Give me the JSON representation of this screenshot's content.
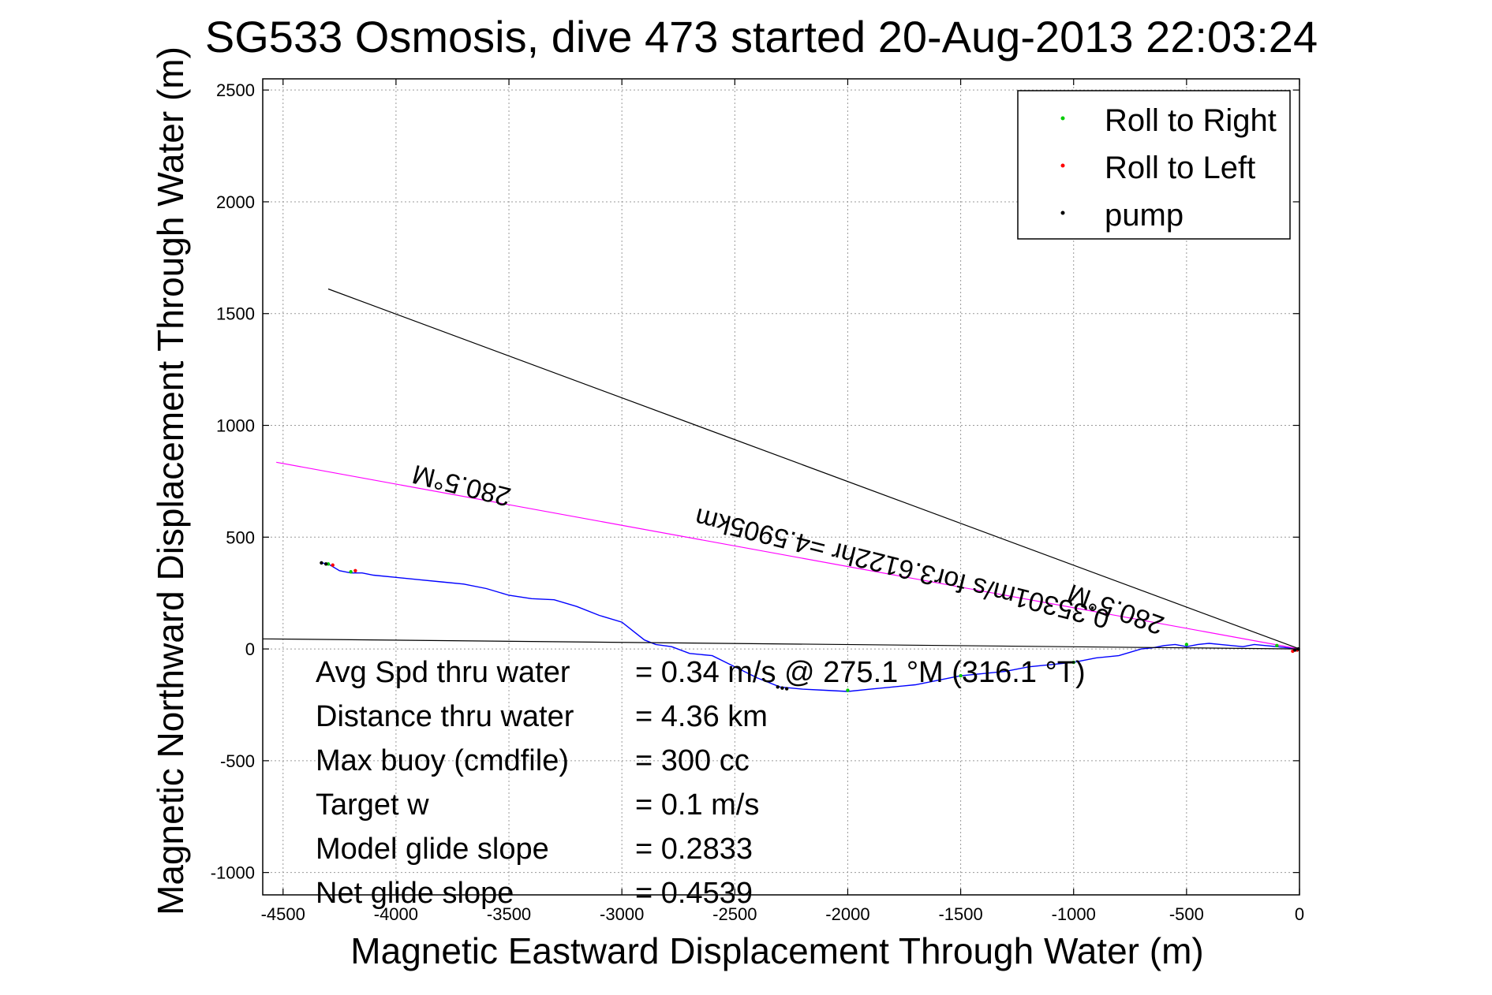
{
  "chart_data": {
    "type": "line",
    "title": "SG533 Osmosis, dive 473 started 20-Aug-2013 22:03:24",
    "xlabel": "Magnetic Eastward Displacement Through Water (m)",
    "ylabel": "Magnetic Northward Displacement Through Water (m)",
    "xlim": [
      -4590,
      0
    ],
    "ylim": [
      -1100,
      2550
    ],
    "xticks": [
      -4500,
      -4000,
      -3500,
      -3000,
      -2500,
      -2000,
      -1500,
      -1000,
      -500,
      0
    ],
    "yticks": [
      -1000,
      -500,
      0,
      500,
      1000,
      1500,
      2000,
      2500
    ],
    "grid": true,
    "legend_position": "top-right",
    "legend": [
      {
        "label": "Roll to Right",
        "color": "#00cc00"
      },
      {
        "label": "Roll to Left",
        "color": "#ff0000"
      },
      {
        "label": "pump",
        "color": "#000000"
      }
    ],
    "series": [
      {
        "color": "#0000ff",
        "x": [
          0,
          -50,
          -100,
          -150,
          -200,
          -250,
          -300,
          -350,
          -400,
          -450,
          -500,
          -550,
          -600,
          -650,
          -700,
          -800,
          -900,
          -1000,
          -1100,
          -1200,
          -1300,
          -1400,
          -1500,
          -1600,
          -1700,
          -1800,
          -1900,
          -2000,
          -2100,
          -2200,
          -2250,
          -2300,
          -2400,
          -2500,
          -2600,
          -2700,
          -2780,
          -2850,
          -2900,
          -2950,
          -3000,
          -3100,
          -3200,
          -3300,
          -3400,
          -3500,
          -3600,
          -3700,
          -3800,
          -3900,
          -4000,
          -4100,
          -4150,
          -4200,
          -4250,
          -4300,
          -4330
        ],
        "y": [
          0,
          5,
          10,
          15,
          20,
          10,
          15,
          20,
          25,
          20,
          10,
          20,
          15,
          5,
          0,
          -30,
          -40,
          -60,
          -70,
          -80,
          -100,
          -110,
          -120,
          -140,
          -160,
          -170,
          -180,
          -190,
          -185,
          -180,
          -175,
          -170,
          -130,
          -80,
          -30,
          -20,
          10,
          20,
          40,
          80,
          120,
          150,
          190,
          220,
          225,
          240,
          270,
          290,
          300,
          310,
          320,
          330,
          340,
          340,
          350,
          380,
          385
        ]
      },
      {
        "color": "#ff00ff",
        "x": [
          -4530,
          0
        ],
        "y": [
          835,
          0
        ]
      },
      {
        "color": "#000000",
        "x": [
          -4300,
          0
        ],
        "y": [
          1610,
          0
        ]
      },
      {
        "color": "#000000",
        "x": [
          -4590,
          0
        ],
        "y": [
          45,
          0
        ]
      }
    ],
    "markers": {
      "roll_right": {
        "color": "#00cc00",
        "x": [
          -4300,
          -4200,
          -2000,
          -1500,
          -1000,
          -500,
          -100
        ],
        "y": [
          380,
          345,
          -185,
          -120,
          -60,
          20,
          15
        ]
      },
      "roll_left": {
        "color": "#ff0000",
        "x": [
          -4280,
          -4180,
          -30,
          -10
        ],
        "y": [
          375,
          350,
          -10,
          -5
        ]
      },
      "pump": {
        "color": "#000000",
        "x": [
          -4330,
          -4310,
          -2310,
          -2290,
          -2270,
          -20,
          -5
        ],
        "y": [
          385,
          380,
          -170,
          -175,
          -178,
          -5,
          0
        ]
      }
    },
    "annotations": [
      {
        "text": "280.5°M",
        "x": -3700,
        "y": 770,
        "rotation": 194
      },
      {
        "text": "0.35301m/s for3.6122hr =4.5905km",
        "x": -1750,
        "y": 400,
        "rotation": 194
      },
      {
        "text": "280.5°M",
        "x": -800,
        "y": 215,
        "rotation": 200
      }
    ],
    "stats": [
      {
        "label": "Avg Spd thru water",
        "value": "=  0.34 m/s @ 275.1 °M (316.1 °T)"
      },
      {
        "label": "Distance thru water",
        "value": "=  4.36 km"
      },
      {
        "label": "Max buoy (cmdfile)",
        "value": "= 300 cc"
      },
      {
        "label": "Target w",
        "value": "= 0.1 m/s"
      },
      {
        "label": "Model glide slope",
        "value": "= 0.2833"
      },
      {
        "label": "Net glide slope",
        "value": "= 0.4539"
      }
    ]
  }
}
